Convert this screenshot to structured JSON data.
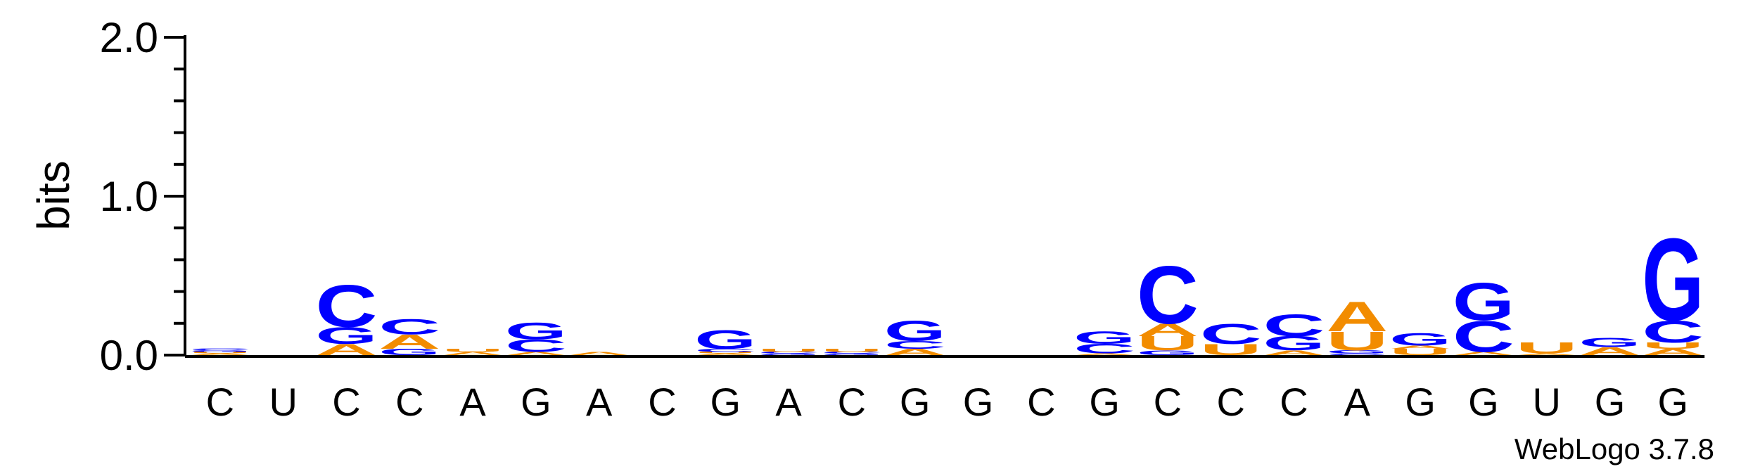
{
  "chart_data": {
    "type": "sequence-logo",
    "ylabel": "bits",
    "ylim": [
      0,
      2.0
    ],
    "yticks": [
      {
        "value": 0.0,
        "label": "0.0"
      },
      {
        "value": 1.0,
        "label": "1.0"
      },
      {
        "value": 2.0,
        "label": "2.0"
      }
    ],
    "colors": {
      "A": "#f28c00",
      "U": "#f28c00",
      "C": "#0000ff",
      "G": "#0000ff"
    },
    "positions": [
      {
        "label": "C",
        "stack": [
          [
            "A",
            0.01
          ],
          [
            "U",
            0.01
          ],
          [
            "G",
            0.01
          ],
          [
            "C",
            0.01
          ]
        ]
      },
      {
        "label": "U",
        "stack": []
      },
      {
        "label": "C",
        "stack": [
          [
            "A",
            0.07
          ],
          [
            "G",
            0.11
          ],
          [
            "C",
            0.27
          ]
        ]
      },
      {
        "label": "C",
        "stack": [
          [
            "G",
            0.04
          ],
          [
            "A",
            0.09
          ],
          [
            "C",
            0.1
          ]
        ]
      },
      {
        "label": "A",
        "stack": [
          [
            "A",
            0.02
          ],
          [
            "U",
            0.02
          ]
        ]
      },
      {
        "label": "G",
        "stack": [
          [
            "A",
            0.02
          ],
          [
            "C",
            0.08
          ],
          [
            "G",
            0.11
          ]
        ]
      },
      {
        "label": "A",
        "stack": [
          [
            "A",
            0.02
          ]
        ]
      },
      {
        "label": "C",
        "stack": []
      },
      {
        "label": "G",
        "stack": [
          [
            "A",
            0.01
          ],
          [
            "U",
            0.01
          ],
          [
            "C",
            0.02
          ],
          [
            "G",
            0.12
          ]
        ]
      },
      {
        "label": "A",
        "stack": [
          [
            "G",
            0.01
          ],
          [
            "C",
            0.01
          ],
          [
            "U",
            0.02
          ]
        ]
      },
      {
        "label": "C",
        "stack": [
          [
            "G",
            0.01
          ],
          [
            "C",
            0.01
          ],
          [
            "U",
            0.02
          ]
        ]
      },
      {
        "label": "G",
        "stack": [
          [
            "A",
            0.04
          ],
          [
            "C",
            0.05
          ],
          [
            "G",
            0.13
          ]
        ]
      },
      {
        "label": "G",
        "stack": []
      },
      {
        "label": "C",
        "stack": []
      },
      {
        "label": "G",
        "stack": [
          [
            "A",
            0.01
          ],
          [
            "C",
            0.06
          ],
          [
            "G",
            0.08
          ]
        ]
      },
      {
        "label": "C",
        "stack": [
          [
            "G",
            0.03
          ],
          [
            "U",
            0.09
          ],
          [
            "A",
            0.08
          ],
          [
            "C",
            0.37
          ]
        ]
      },
      {
        "label": "C",
        "stack": [
          [
            "U",
            0.07
          ],
          [
            "C",
            0.13
          ]
        ]
      },
      {
        "label": "C",
        "stack": [
          [
            "A",
            0.03
          ],
          [
            "G",
            0.09
          ],
          [
            "C",
            0.14
          ]
        ]
      },
      {
        "label": "A",
        "stack": [
          [
            "C",
            0.01
          ],
          [
            "G",
            0.02
          ],
          [
            "U",
            0.12
          ],
          [
            "A",
            0.19
          ]
        ]
      },
      {
        "label": "G",
        "stack": [
          [
            "U",
            0.04
          ],
          [
            "A",
            0.02
          ],
          [
            "G",
            0.08
          ]
        ]
      },
      {
        "label": "G",
        "stack": [
          [
            "A",
            0.02
          ],
          [
            "C",
            0.2
          ],
          [
            "G",
            0.24
          ]
        ]
      },
      {
        "label": "U",
        "stack": [
          [
            "A",
            0.01
          ],
          [
            "U",
            0.07
          ]
        ]
      },
      {
        "label": "G",
        "stack": [
          [
            "A",
            0.05
          ],
          [
            "G",
            0.06
          ]
        ]
      },
      {
        "label": "G",
        "stack": [
          [
            "A",
            0.04
          ],
          [
            "U",
            0.04
          ],
          [
            "C",
            0.14
          ],
          [
            "G",
            0.53
          ]
        ]
      }
    ]
  },
  "footer": {
    "text": "WebLogo 3.7.8"
  }
}
